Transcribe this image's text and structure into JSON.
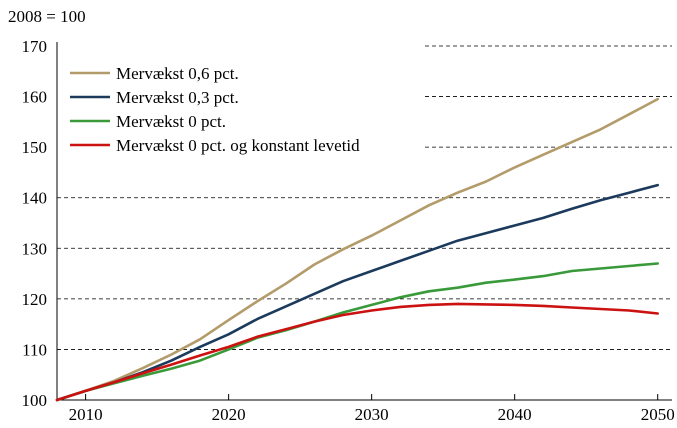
{
  "chart_data": {
    "type": "line",
    "unit_label": "2008 = 100",
    "title": "",
    "xlabel": "",
    "ylabel": "",
    "xlim": [
      2008,
      2051
    ],
    "ylim": [
      100,
      170
    ],
    "x_ticks": [
      2010,
      2020,
      2030,
      2040,
      2050
    ],
    "y_ticks": [
      100,
      110,
      120,
      130,
      140,
      150,
      160,
      170
    ],
    "grid": "horizontal dashed",
    "legend_position": "top-left",
    "series": [
      {
        "name": "Mervækst 0,6 pct.",
        "color": "#B39B6A",
        "x": [
          2008,
          2010,
          2012,
          2014,
          2016,
          2018,
          2020,
          2022,
          2024,
          2026,
          2028,
          2030,
          2032,
          2034,
          2036,
          2038,
          2040,
          2042,
          2044,
          2046,
          2048,
          2050
        ],
        "y": [
          100,
          101.8,
          103.8,
          106.3,
          109,
          112,
          115.8,
          119.5,
          123,
          126.8,
          129.8,
          132.5,
          135.5,
          138.5,
          141,
          143.2,
          146,
          148.5,
          151,
          153.5,
          156.5,
          159.5
        ]
      },
      {
        "name": "Mervækst 0,3 pct.",
        "color": "#1B3A5C",
        "x": [
          2008,
          2010,
          2012,
          2014,
          2016,
          2018,
          2020,
          2022,
          2024,
          2026,
          2028,
          2030,
          2032,
          2034,
          2036,
          2038,
          2040,
          2042,
          2044,
          2046,
          2048,
          2050
        ],
        "y": [
          100,
          101.8,
          103.5,
          105.5,
          107.8,
          110.5,
          113,
          116,
          118.5,
          121,
          123.5,
          125.5,
          127.5,
          129.5,
          131.5,
          133,
          134.5,
          136,
          137.8,
          139.5,
          141,
          142.5
        ]
      },
      {
        "name": "Mervækst 0 pct.",
        "color": "#3A9A3A",
        "x": [
          2008,
          2010,
          2012,
          2014,
          2016,
          2018,
          2020,
          2022,
          2024,
          2026,
          2028,
          2030,
          2032,
          2034,
          2036,
          2038,
          2040,
          2042,
          2044,
          2046,
          2048,
          2050
        ],
        "y": [
          100,
          101.8,
          103.3,
          104.8,
          106.2,
          107.8,
          110,
          112.3,
          113.8,
          115.5,
          117.3,
          118.8,
          120.3,
          121.5,
          122.2,
          123.2,
          123.8,
          124.5,
          125.5,
          126,
          126.5,
          127
        ]
      },
      {
        "name": "Mervækst 0 pct. og konstant levetid",
        "color": "#CC1111",
        "x": [
          2008,
          2010,
          2012,
          2014,
          2016,
          2018,
          2020,
          2022,
          2024,
          2026,
          2028,
          2030,
          2032,
          2034,
          2036,
          2038,
          2040,
          2042,
          2044,
          2046,
          2048,
          2050
        ],
        "y": [
          100,
          101.8,
          103.5,
          105.3,
          107,
          108.8,
          110.5,
          112.5,
          114,
          115.5,
          116.8,
          117.7,
          118.4,
          118.8,
          119,
          118.9,
          118.8,
          118.6,
          118.3,
          118,
          117.7,
          117.1
        ]
      }
    ]
  }
}
